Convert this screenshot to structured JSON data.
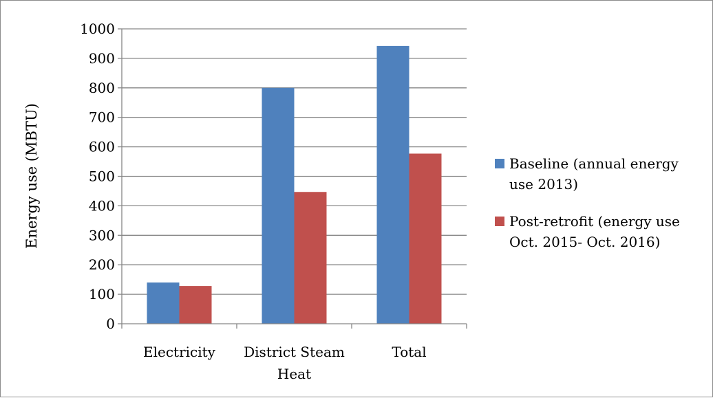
{
  "chart_data": {
    "type": "bar",
    "title": "",
    "xlabel": "",
    "ylabel": "Energy use (MBTU)",
    "ylim": [
      0,
      1000
    ],
    "yticks": [
      0,
      100,
      200,
      300,
      400,
      500,
      600,
      700,
      800,
      900,
      1000
    ],
    "ytick_labels": [
      "0",
      "100",
      "200",
      "300",
      "400",
      "500",
      "600",
      "700",
      "800",
      "900",
      "1000"
    ],
    "categories": [
      "Electricity",
      "District Steam Heat",
      "Total"
    ],
    "category_label_lines": [
      [
        "Electricity"
      ],
      [
        "District Steam",
        "Heat"
      ],
      [
        "Total"
      ]
    ],
    "series": [
      {
        "name": "Baseline (annual energy use 2013)",
        "legend_lines": [
          "Baseline (annual energy",
          "use 2013)"
        ],
        "color": "#4F81BD",
        "values": [
          140,
          800,
          942
        ]
      },
      {
        "name": "Post-retrofit (energy use Oct. 2015- Oct. 2016)",
        "legend_lines": [
          "Post-retrofit (energy use",
          "Oct. 2015- Oct. 2016)"
        ],
        "color": "#C0504D",
        "values": [
          128,
          447,
          577
        ]
      }
    ],
    "grid": true,
    "legend_position": "right"
  }
}
